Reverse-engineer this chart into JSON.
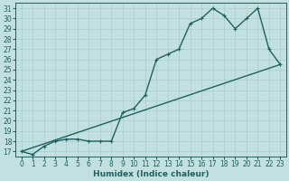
{
  "xlabel": "Humidex (Indice chaleur)",
  "ylabel": "",
  "background_color": "#c2e0e0",
  "grid_color": "#a8cccc",
  "line_color": "#206060",
  "xlim": [
    -0.5,
    23.5
  ],
  "ylim": [
    16.5,
    31.5
  ],
  "xticks": [
    0,
    1,
    2,
    3,
    4,
    5,
    6,
    7,
    8,
    9,
    10,
    11,
    12,
    13,
    14,
    15,
    16,
    17,
    18,
    19,
    20,
    21,
    22,
    23
  ],
  "yticks": [
    17,
    18,
    19,
    20,
    21,
    22,
    23,
    24,
    25,
    26,
    27,
    28,
    29,
    30,
    31
  ],
  "line1_x": [
    0,
    1,
    2,
    3,
    4,
    5,
    6,
    7,
    8,
    9,
    10,
    11,
    12,
    13,
    14,
    15,
    16,
    17,
    18,
    19,
    20,
    21,
    22,
    23
  ],
  "line1_y": [
    17.0,
    16.7,
    17.5,
    18.0,
    18.2,
    18.2,
    18.0,
    18.0,
    18.0,
    20.8,
    21.2,
    22.5,
    26.0,
    26.5,
    27.0,
    29.5,
    30.0,
    31.0,
    30.3,
    29.0,
    30.0,
    31.0,
    27.0,
    25.5
  ],
  "line2_x": [
    0,
    23
  ],
  "line2_y": [
    17.0,
    25.5
  ],
  "marker": "+",
  "markersize": 3.5,
  "linewidth": 1.0,
  "xlabel_fontsize": 6.5,
  "tick_fontsize": 5.5
}
